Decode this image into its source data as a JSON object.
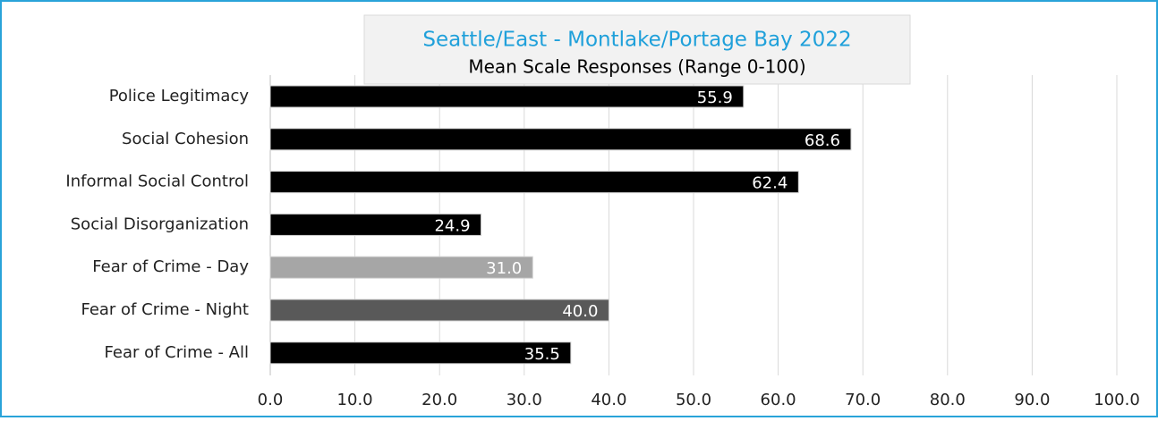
{
  "chart_data": {
    "type": "barh",
    "title": "Seattle/East - Montlake/Portage Bay 2022",
    "subtitle": "Mean Scale Responses (Range 0-100)",
    "categories": [
      "Police Legitimacy",
      "Social Cohesion",
      "Informal Social Control",
      "Social Disorganization",
      "Fear of Crime - Day",
      "Fear of Crime - Night",
      "Fear of Crime - All"
    ],
    "values": [
      55.9,
      68.6,
      62.4,
      24.9,
      31.0,
      40.0,
      35.5
    ],
    "value_labels": [
      "55.9",
      "68.6",
      "62.4",
      "24.9",
      "31.0",
      "40.0",
      "35.5"
    ],
    "colors": [
      "#000000",
      "#000000",
      "#000000",
      "#000000",
      "#a6a6a6",
      "#595959",
      "#000000"
    ],
    "xlim": [
      0,
      100
    ],
    "xticks": [
      {
        "value": 0,
        "label": "0.0"
      },
      {
        "value": 10,
        "label": "10.0"
      },
      {
        "value": 20,
        "label": "20.0"
      },
      {
        "value": 30,
        "label": "30.0"
      },
      {
        "value": 40,
        "label": "40.0"
      },
      {
        "value": 50,
        "label": "50.0"
      },
      {
        "value": 60,
        "label": "60.0"
      },
      {
        "value": 70,
        "label": "70.0"
      },
      {
        "value": 80,
        "label": "80.0"
      },
      {
        "value": 90,
        "label": "90.0"
      },
      {
        "value": 100,
        "label": "100.0"
      }
    ],
    "grid": true
  }
}
